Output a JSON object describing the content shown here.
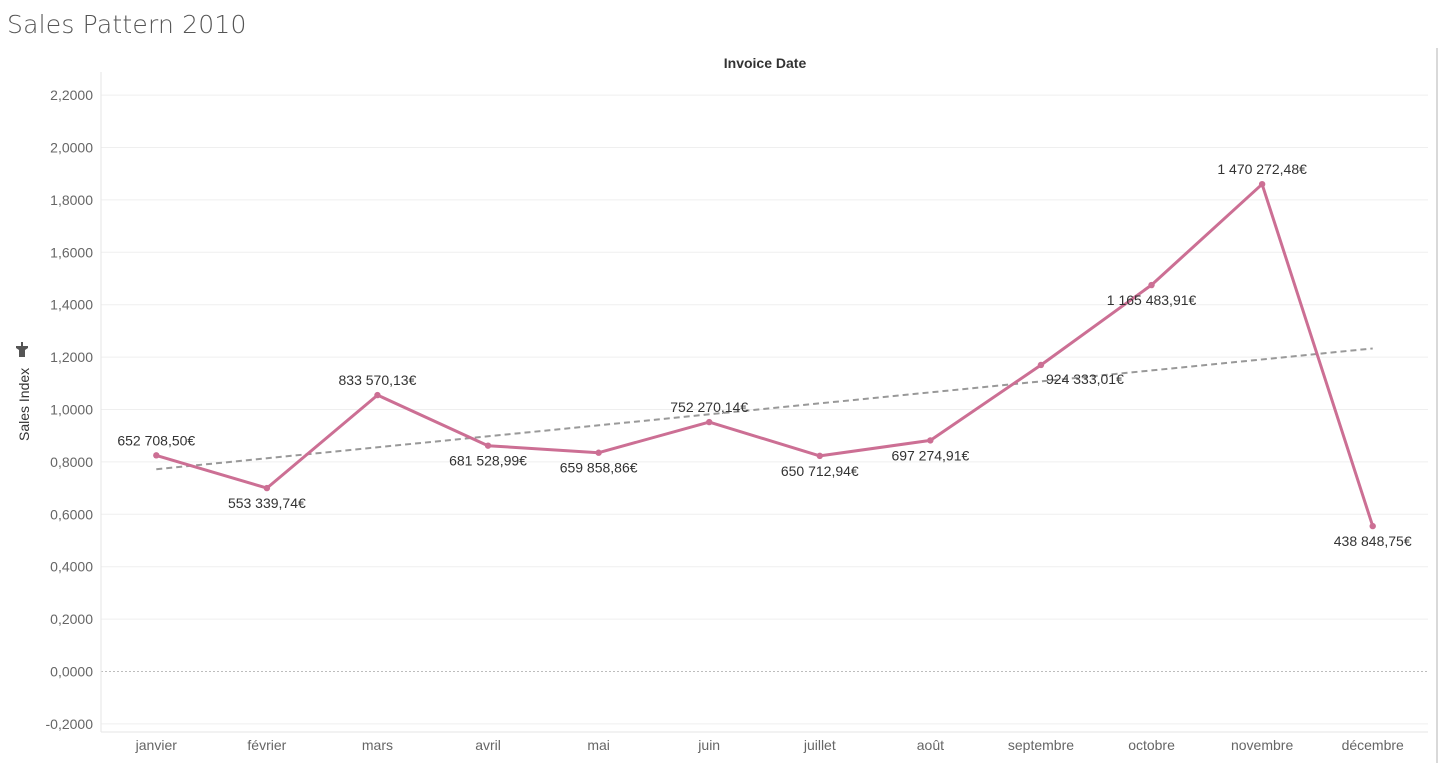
{
  "page": {
    "title": "Sales Pattern 2010"
  },
  "chart_data": {
    "type": "line",
    "title": "Sales Pattern 2010",
    "column_header": "Invoice Date",
    "xlabel": "",
    "ylabel": "Sales Index",
    "ylabel_icon": "pin-icon",
    "categories": [
      "janvier",
      "février",
      "mars",
      "avril",
      "mai",
      "juin",
      "juillet",
      "août",
      "septembre",
      "octobre",
      "novembre",
      "décembre"
    ],
    "series": [
      {
        "values": [
          0.825,
          0.7,
          1.055,
          0.862,
          0.835,
          0.952,
          0.823,
          0.882,
          1.17,
          1.475,
          1.86,
          0.555
        ],
        "data_labels": [
          "652 708,50€",
          "553 339,74€",
          "833 570,13€",
          "681 528,99€",
          "659 858,86€",
          "752 270,14€",
          "650 712,94€",
          "697 274,91€",
          "924 333,01€",
          "1 165 483,91€",
          "1 470 272,48€",
          "438 848,75€"
        ],
        "color": "#cc6f94"
      }
    ],
    "trend_line": {
      "start": 0.772,
      "end": 1.233,
      "color": "#999999",
      "style": "dashed"
    },
    "ylim": [
      -0.2,
      2.2
    ],
    "yticks": [
      -0.2,
      0.0,
      0.2,
      0.4,
      0.6,
      0.8,
      1.0,
      1.2,
      1.4,
      1.6,
      1.8,
      2.0,
      2.2
    ],
    "ytick_labels": [
      "-0,2000",
      "0,0000",
      "0,2000",
      "0,4000",
      "0,6000",
      "0,8000",
      "1,0000",
      "1,2000",
      "1,4000",
      "1,6000",
      "1,8000",
      "2,0000",
      "2,2000"
    ],
    "grid": true,
    "legend": "none"
  }
}
